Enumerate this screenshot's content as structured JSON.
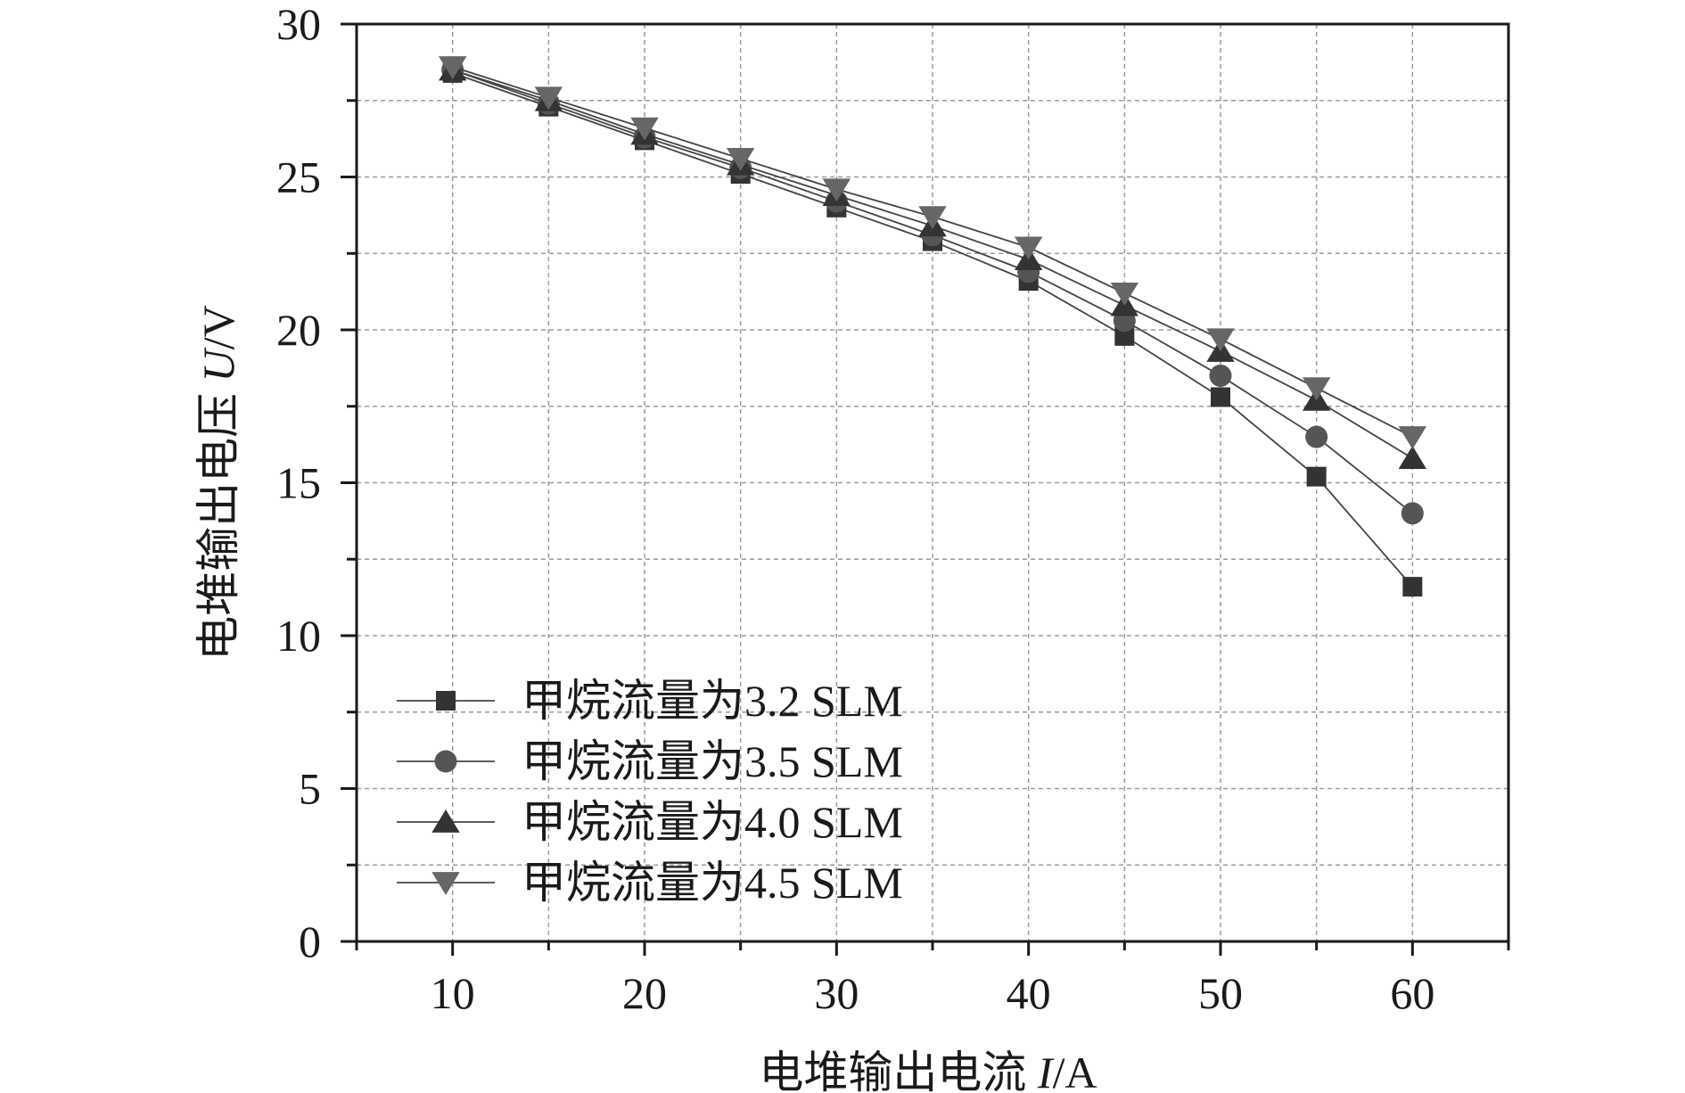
{
  "chart_data": {
    "type": "line",
    "xlabel": "电堆输出电流 I/A",
    "ylabel": "电堆输出电压 U/V",
    "xlabel_parts": [
      "电堆输出电流 ",
      "I",
      "/A"
    ],
    "ylabel_parts": [
      "电堆输出电压 ",
      "U",
      "/V"
    ],
    "xlim": [
      5,
      65
    ],
    "ylim": [
      0,
      30
    ],
    "xticks": [
      10,
      20,
      30,
      40,
      50,
      60
    ],
    "yticks": [
      0,
      5,
      10,
      15,
      20,
      25,
      30
    ],
    "grid": true,
    "legend_position": "bottom-left",
    "x": [
      10,
      15,
      20,
      25,
      30,
      35,
      40,
      45,
      50,
      55,
      60
    ],
    "series": [
      {
        "name": "甲烷流量为3.2 SLM",
        "marker": "square",
        "color": "#333333",
        "values": [
          28.4,
          27.3,
          26.2,
          25.1,
          24.0,
          22.9,
          21.6,
          19.8,
          17.8,
          15.2,
          11.6
        ]
      },
      {
        "name": "甲烷流量为3.5 SLM",
        "marker": "circle",
        "color": "#555555",
        "values": [
          28.5,
          27.4,
          26.3,
          25.3,
          24.2,
          23.1,
          21.9,
          20.3,
          18.5,
          16.5,
          14.0
        ]
      },
      {
        "name": "甲烷流量为4.0 SLM",
        "marker": "triangle-up",
        "color": "#333333",
        "values": [
          28.5,
          27.5,
          26.4,
          25.4,
          24.4,
          23.4,
          22.3,
          20.8,
          19.3,
          17.7,
          15.8
        ]
      },
      {
        "name": "甲烷流量为4.5 SLM",
        "marker": "triangle-down",
        "color": "#666666",
        "values": [
          28.6,
          27.6,
          26.6,
          25.6,
          24.6,
          23.7,
          22.7,
          21.2,
          19.7,
          18.1,
          16.5
        ]
      }
    ]
  }
}
